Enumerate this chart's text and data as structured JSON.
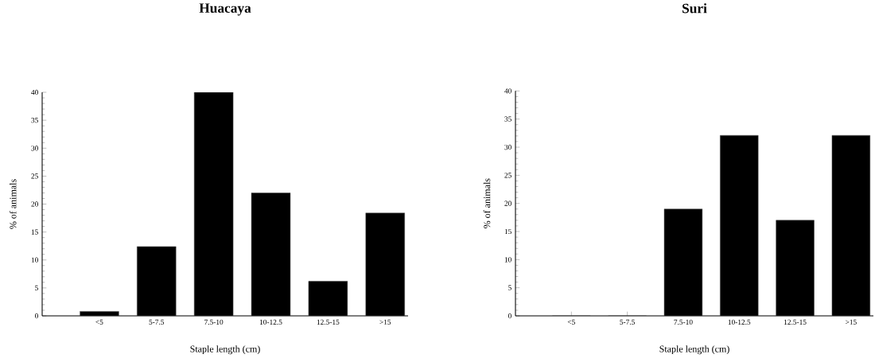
{
  "chart_data": [
    {
      "type": "bar",
      "title": "Huacaya",
      "xlabel": "Staple length (cm)",
      "ylabel": "% of animals",
      "categories": [
        "<5",
        "5-7.5",
        "7.5-10",
        "10-12.5",
        "12.5-15",
        ">15"
      ],
      "values": [
        0.8,
        12.4,
        40,
        22,
        6.2,
        18.4
      ],
      "color": "#000000",
      "ylim": [
        0,
        40
      ],
      "yticks": [
        0,
        5,
        10,
        15,
        20,
        25,
        30,
        35,
        40
      ]
    },
    {
      "type": "bar",
      "title": "Suri",
      "xlabel": "Staple length (cm)",
      "ylabel": "% of animals",
      "categories": [
        "<5",
        "5-7.5",
        "7.5-10",
        "10-12.5",
        "12.5-15",
        ">15"
      ],
      "values": [
        0,
        0,
        19,
        32.1,
        17,
        32.1
      ],
      "color": "#000000",
      "ylim": [
        0,
        40
      ],
      "yticks": [
        0,
        5,
        10,
        15,
        20,
        25,
        30,
        35,
        40
      ]
    }
  ]
}
